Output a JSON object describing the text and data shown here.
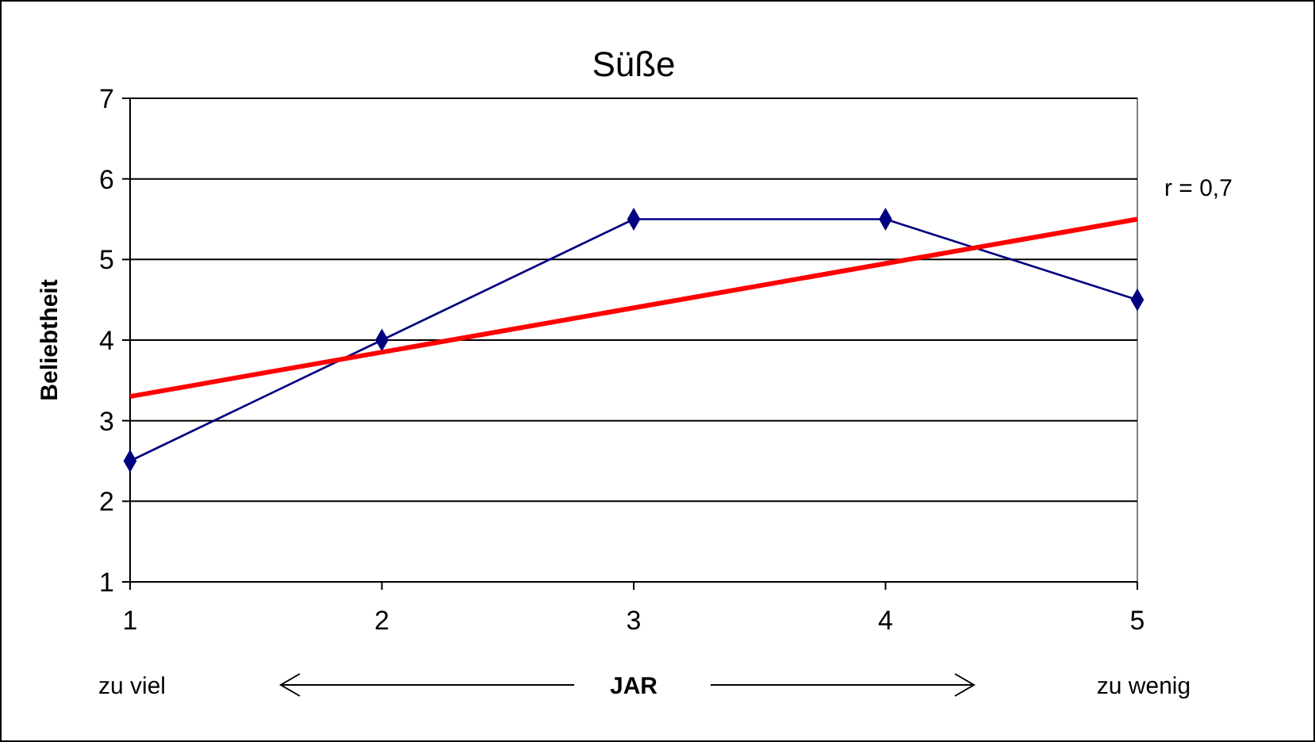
{
  "chart_data": {
    "type": "line",
    "title": "Süße",
    "xlabel": "JAR",
    "ylabel": "Beliebtheit",
    "x": [
      1,
      2,
      3,
      4,
      5
    ],
    "series": [
      {
        "color": "#000080",
        "values": [
          2.5,
          4,
          5.5,
          5.5,
          4.5
        ],
        "marker": "diamond"
      },
      {
        "type": "line",
        "x": [
          1,
          5
        ],
        "values": [
          3.3,
          5.5
        ],
        "color": "#ff0000",
        "marker": "none"
      }
    ],
    "xlim": [
      1,
      5
    ],
    "xticks": [
      1,
      2,
      3,
      4,
      5
    ],
    "ylim": [
      1,
      7
    ],
    "yticks": [
      1,
      2,
      3,
      4,
      5,
      6,
      7
    ],
    "grid": "y",
    "annotations": [
      {
        "text": "r = 0,7",
        "x": 5,
        "y": 5.5
      },
      "zu viel",
      "zu wenig"
    ]
  }
}
